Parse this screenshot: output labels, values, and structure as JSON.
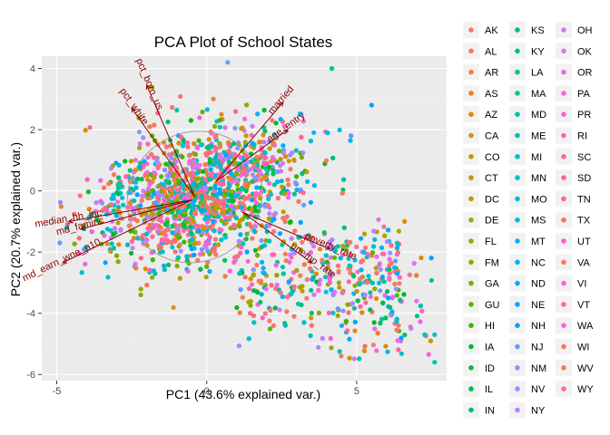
{
  "chart_data": {
    "type": "scatter",
    "title": "PCA Plot of School States",
    "xlabel": "PC1 (43.6% explained var.)",
    "ylabel": "PC2 (20.7% explained var.)",
    "xlim": [
      -5.5,
      8.0
    ],
    "ylim": [
      -6.2,
      4.4
    ],
    "x_ticks": [
      -5,
      0,
      5
    ],
    "x_tick_labels": [
      "-5",
      "0",
      "5"
    ],
    "y_ticks": [
      -6,
      -4,
      -2,
      0,
      2,
      4
    ],
    "y_tick_labels": [
      "-6",
      "-4",
      "-2",
      "0",
      "2",
      "4"
    ],
    "grid": true,
    "legend_position": "right",
    "legend_columns": 3,
    "categories": [
      "AK",
      "AL",
      "AR",
      "AS",
      "AZ",
      "CA",
      "CO",
      "CT",
      "DC",
      "DE",
      "FL",
      "FM",
      "GA",
      "GU",
      "HI",
      "IA",
      "ID",
      "IL",
      "IN",
      "KS",
      "KY",
      "LA",
      "MA",
      "MD",
      "ME",
      "MI",
      "MN",
      "MO",
      "MS",
      "MT",
      "NC",
      "ND",
      "NE",
      "NH",
      "NJ",
      "NM",
      "NV",
      "NY",
      "OH",
      "OK",
      "OR",
      "PA",
      "PR",
      "RI",
      "SC",
      "SD",
      "TN",
      "TX",
      "UT",
      "VA",
      "VI",
      "VT",
      "WA",
      "WI",
      "WV",
      "WY"
    ],
    "colors": [
      "#F8766D",
      "#F37B59",
      "#EE8044",
      "#E7851E",
      "#DF8A00",
      "#D69000",
      "#CB9500",
      "#C09A00",
      "#B49F00",
      "#A6A400",
      "#97A800",
      "#86AC00",
      "#72B000",
      "#5BB300",
      "#3AB600",
      "#00B81F",
      "#00BA3D",
      "#00BC52",
      "#00BE64",
      "#00BF74",
      "#00C083",
      "#00C191",
      "#00C19E",
      "#00C1AB",
      "#00C1B7",
      "#00C0C3",
      "#00BFCE",
      "#00BDD9",
      "#00BAE3",
      "#00B7EC",
      "#00B3F4",
      "#00AEFA",
      "#00A9FF",
      "#00A3FF",
      "#619CFF",
      "#8A94FF",
      "#A58AFF",
      "#B983FF",
      "#CA7BFC",
      "#D875F2",
      "#E46EE7",
      "#EE69DA",
      "#F564CB",
      "#FA62BB",
      "#FD62A9",
      "#FF6496",
      "#FF6882",
      "#FE6D6E",
      "#FF61C3",
      "#F8766D",
      "#EF67EB",
      "#FF6C91",
      "#F564E3",
      "#F8766D",
      "#F37B59",
      "#FF6A98"
    ],
    "loadings": [
      {
        "name": "pct_born_us",
        "x1": -0.4,
        "y1": -0.2,
        "x2": -2.0,
        "y2": 3.45
      },
      {
        "name": "pct_white",
        "x1": -0.4,
        "y1": -0.2,
        "x2": -2.5,
        "y2": 2.7
      },
      {
        "name": "married",
        "x1": 0.3,
        "y1": 0.3,
        "x2": 2.55,
        "y2": 2.9
      },
      {
        "name": "age_entry",
        "x1": 0.3,
        "y1": 0.3,
        "x2": 2.7,
        "y2": 2.0
      },
      {
        "name": "median_hh_inc",
        "x1": -0.5,
        "y1": -0.3,
        "x2": -4.6,
        "y2": -1.0
      },
      {
        "name": "md_faminc",
        "x1": -0.5,
        "y1": -0.3,
        "x2": -4.2,
        "y2": -1.25
      },
      {
        "name": "md_earn_wne_p10",
        "x1": -0.5,
        "y1": -0.3,
        "x2": -4.8,
        "y2": -2.35
      },
      {
        "name": "poverty_rate",
        "x1": 1.2,
        "y1": -0.7,
        "x2": 4.1,
        "y2": -1.9
      },
      {
        "name": "unemp_rate",
        "x1": 1.2,
        "y1": -0.7,
        "x2": 3.5,
        "y2": -2.35
      }
    ],
    "loading_color": "#8b0000"
  }
}
